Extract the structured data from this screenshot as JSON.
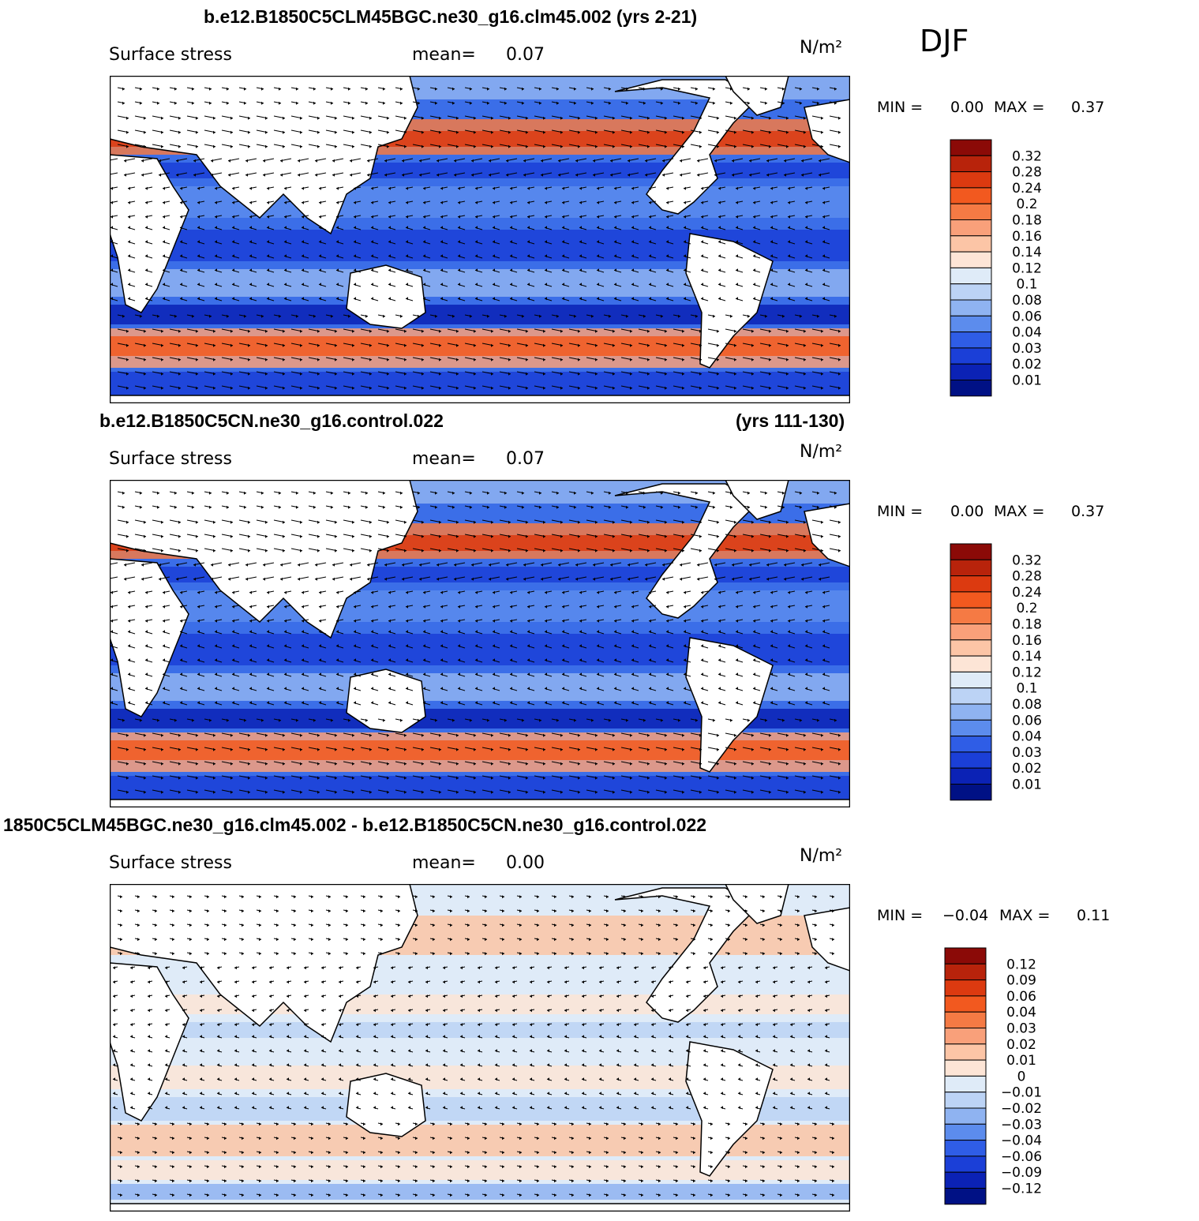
{
  "season": "DJF",
  "panels": [
    {
      "title_left": "b.e12.B1850C5CLM45BGC.ne30_g16.clm45.002 (yrs 2-21)",
      "title_right": "",
      "variable": "Surface stress",
      "mean_label": "mean=",
      "mean_value": "0.07",
      "units": "N/m²",
      "min_label": "MIN =",
      "min_value": "0.00",
      "max_label": "MAX =",
      "max_value": "0.37",
      "colorbar": {
        "labels": [
          "0.32",
          "0.28",
          "0.24",
          "0.2",
          "0.18",
          "0.16",
          "0.14",
          "0.12",
          "0.1",
          "0.08",
          "0.06",
          "0.04",
          "0.03",
          "0.02",
          "0.01"
        ],
        "colors": [
          "#8b0a07",
          "#b8230b",
          "#dc3a10",
          "#f2591f",
          "#f57a44",
          "#f9a07a",
          "#fcc5a6",
          "#fde5d6",
          "#dfebf8",
          "#bcd3f5",
          "#8fb3f1",
          "#5c8ced",
          "#2f5de6",
          "#1b3fd7",
          "#0b22b5",
          "#001185"
        ]
      }
    },
    {
      "title_left": "b.e12.B1850C5CN.ne30_g16.control.022",
      "title_right": "(yrs 111-130)",
      "variable": "Surface stress",
      "mean_label": "mean=",
      "mean_value": "0.07",
      "units": "N/m²",
      "min_label": "MIN =",
      "min_value": "0.00",
      "max_label": "MAX =",
      "max_value": "0.37",
      "colorbar": {
        "labels": [
          "0.32",
          "0.28",
          "0.24",
          "0.2",
          "0.18",
          "0.16",
          "0.14",
          "0.12",
          "0.1",
          "0.08",
          "0.06",
          "0.04",
          "0.03",
          "0.02",
          "0.01"
        ],
        "colors": [
          "#8b0a07",
          "#b8230b",
          "#dc3a10",
          "#f2591f",
          "#f57a44",
          "#f9a07a",
          "#fcc5a6",
          "#fde5d6",
          "#dfebf8",
          "#bcd3f5",
          "#8fb3f1",
          "#5c8ced",
          "#2f5de6",
          "#1b3fd7",
          "#0b22b5",
          "#001185"
        ]
      }
    },
    {
      "title_left": "1850C5CLM45BGC.ne30_g16.clm45.002 - b.e12.B1850C5CN.ne30_g16.control.022",
      "title_right": "",
      "variable": "Surface stress",
      "mean_label": "mean=",
      "mean_value": "0.00",
      "units": "N/m²",
      "min_label": "MIN =",
      "min_value": "−0.04",
      "max_label": "MAX =",
      "max_value": "0.11",
      "colorbar": {
        "labels": [
          "0.12",
          "0.09",
          "0.06",
          "0.04",
          "0.03",
          "0.02",
          "0.01",
          "0",
          "−0.01",
          "−0.02",
          "−0.03",
          "−0.04",
          "−0.06",
          "−0.09",
          "−0.12"
        ],
        "colors": [
          "#8b0a07",
          "#b8230b",
          "#dc3a10",
          "#f2591f",
          "#f57a44",
          "#f9a07a",
          "#fcc5a6",
          "#fde5d6",
          "#dfebf8",
          "#bcd3f5",
          "#8fb3f1",
          "#5c8ced",
          "#2f5de6",
          "#1b3fd7",
          "#0b22b5",
          "#001185"
        ]
      }
    }
  ]
}
